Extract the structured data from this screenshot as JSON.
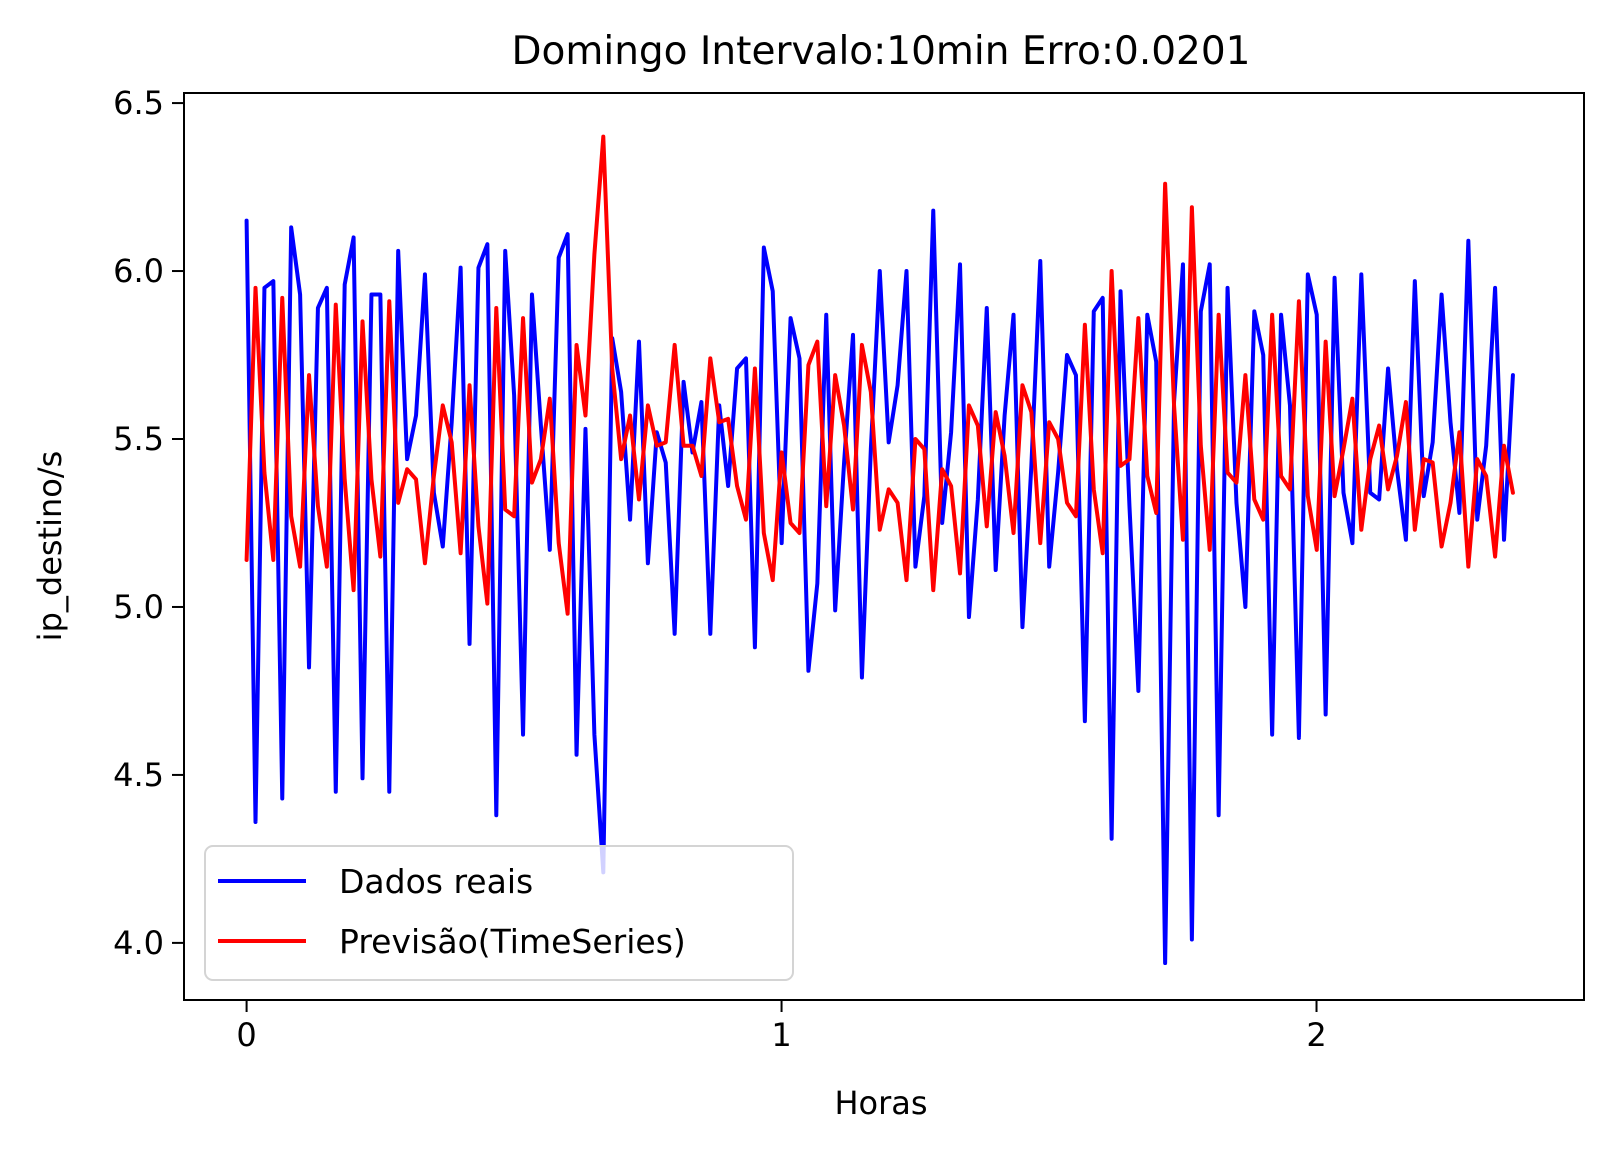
{
  "chart_data": {
    "type": "line",
    "title": "Domingo Intervalo:10min Erro:0.0201",
    "xlabel": "Horas",
    "ylabel": "ip_destino/s",
    "xlim": [
      -0.117,
      2.5
    ],
    "ylim": [
      3.83,
      6.53
    ],
    "xticks": [
      0,
      1,
      2
    ],
    "xtick_labels": [
      "0",
      "1",
      "2"
    ],
    "yticks": [
      4.0,
      4.5,
      5.0,
      5.5,
      6.0,
      6.5
    ],
    "ytick_labels": [
      "4.0",
      "4.5",
      "5.0",
      "5.5",
      "6.0",
      "6.5"
    ],
    "grid": false,
    "legend_position": "lower left",
    "x_step": 0.01667,
    "series": [
      {
        "name": "Dados reais",
        "color": "#0000ff",
        "values": [
          6.15,
          4.36,
          5.95,
          5.97,
          4.43,
          6.13,
          5.93,
          4.82,
          5.89,
          5.95,
          4.45,
          5.96,
          6.1,
          4.49,
          5.93,
          5.93,
          4.45,
          6.06,
          5.44,
          5.57,
          5.99,
          5.34,
          5.18,
          5.55,
          6.01,
          4.89,
          6.01,
          6.08,
          4.38,
          6.06,
          5.63,
          4.62,
          5.93,
          5.54,
          5.17,
          6.04,
          6.11,
          4.56,
          5.53,
          4.62,
          4.21,
          5.8,
          5.64,
          5.26,
          5.79,
          5.13,
          5.52,
          5.43,
          4.92,
          5.67,
          5.46,
          5.61,
          4.92,
          5.6,
          5.36,
          5.71,
          5.74,
          4.88,
          6.07,
          5.94,
          5.19,
          5.86,
          5.74,
          4.81,
          5.07,
          5.87,
          4.99,
          5.43,
          5.81,
          4.79,
          5.47,
          6.0,
          5.49,
          5.66,
          6.0,
          5.12,
          5.33,
          6.18,
          5.25,
          5.52,
          6.02,
          4.97,
          5.32,
          5.89,
          5.11,
          5.57,
          5.87,
          4.94,
          5.42,
          6.03,
          5.12,
          5.4,
          5.75,
          5.69,
          4.66,
          5.88,
          5.92,
          4.31,
          5.94,
          5.3,
          4.75,
          5.87,
          5.73,
          3.94,
          5.61,
          6.02,
          4.01,
          5.88,
          6.02,
          4.38,
          5.95,
          5.31,
          5.0,
          5.88,
          5.75,
          4.62,
          5.87,
          5.6,
          4.61,
          5.99,
          5.87,
          4.68,
          5.98,
          5.34,
          5.19,
          5.99,
          5.34,
          5.32,
          5.71,
          5.41,
          5.2,
          5.97,
          5.33,
          5.49,
          5.93,
          5.55,
          5.28,
          6.09,
          5.26,
          5.48,
          5.95,
          5.2,
          5.69
        ]
      },
      {
        "name": "Previsão(TimeSeries)",
        "color": "#ff0000",
        "values": [
          5.14,
          5.95,
          5.4,
          5.14,
          5.92,
          5.27,
          5.12,
          5.69,
          5.3,
          5.12,
          5.9,
          5.38,
          5.05,
          5.85,
          5.38,
          5.15,
          5.91,
          5.31,
          5.41,
          5.38,
          5.13,
          5.39,
          5.6,
          5.49,
          5.16,
          5.66,
          5.24,
          5.01,
          5.89,
          5.29,
          5.27,
          5.86,
          5.37,
          5.44,
          5.62,
          5.19,
          4.98,
          5.78,
          5.57,
          6.05,
          6.4,
          5.71,
          5.44,
          5.57,
          5.32,
          5.6,
          5.48,
          5.49,
          5.78,
          5.48,
          5.48,
          5.39,
          5.74,
          5.55,
          5.56,
          5.36,
          5.26,
          5.71,
          5.22,
          5.08,
          5.46,
          5.25,
          5.22,
          5.72,
          5.79,
          5.3,
          5.69,
          5.54,
          5.29,
          5.78,
          5.64,
          5.23,
          5.35,
          5.31,
          5.08,
          5.5,
          5.47,
          5.05,
          5.41,
          5.36,
          5.1,
          5.6,
          5.54,
          5.24,
          5.58,
          5.45,
          5.22,
          5.66,
          5.58,
          5.19,
          5.55,
          5.5,
          5.31,
          5.27,
          5.84,
          5.35,
          5.16,
          6.0,
          5.42,
          5.44,
          5.86,
          5.39,
          5.28,
          6.26,
          5.6,
          5.2,
          6.19,
          5.48,
          5.17,
          5.87,
          5.4,
          5.37,
          5.69,
          5.32,
          5.26,
          5.87,
          5.39,
          5.35,
          5.91,
          5.33,
          5.17,
          5.79,
          5.33,
          5.47,
          5.62,
          5.23,
          5.44,
          5.54,
          5.35,
          5.45,
          5.61,
          5.23,
          5.44,
          5.43,
          5.18,
          5.31,
          5.52,
          5.12,
          5.44,
          5.39,
          5.15,
          5.48,
          5.34
        ]
      }
    ]
  }
}
